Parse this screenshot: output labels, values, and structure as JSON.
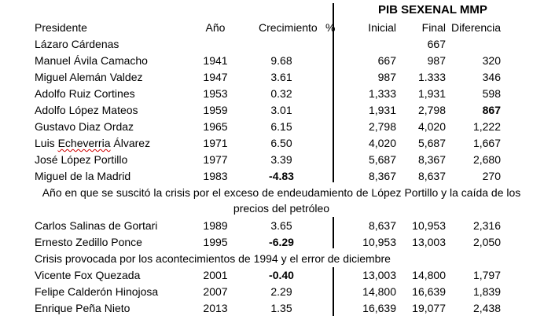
{
  "title": "PIB SEXENAL MMP",
  "headers": {
    "president": "Presidente",
    "year": "Año",
    "growth": "Crecimiento",
    "percent": "%",
    "initial": "Inicial",
    "final": "Final",
    "difference": "Diferencia"
  },
  "rows_a": [
    {
      "president": "Lázaro Cárdenas",
      "year": "",
      "growth": "",
      "initial": "",
      "final": "667",
      "difference": ""
    },
    {
      "president": "Manuel Ávila Camacho",
      "year": "1941",
      "growth": "9.68",
      "initial": "667",
      "final": "987",
      "difference": "320"
    },
    {
      "president": "Miguel Alemán Valdez",
      "year": "1947",
      "growth": "3.61",
      "initial": "987",
      "final": "1.333",
      "difference": "346"
    },
    {
      "president": "Adolfo Ruiz Cortines",
      "year": "1953",
      "growth": "0.32",
      "initial": "1,333",
      "final": "1,931",
      "difference": "598"
    },
    {
      "president": "Adolfo López Mateos",
      "year": "1959",
      "growth": "3.01",
      "initial": "1,931",
      "final": "2,798",
      "difference": "867"
    },
    {
      "president": "Gustavo Diaz Ordaz",
      "year": "1965",
      "growth": "6.15",
      "initial": "2,798",
      "final": "4,020",
      "difference": "1,222"
    },
    {
      "president_pre": "Luis ",
      "president_word": "Echeverria",
      "president_post": " Álvarez",
      "year": "1971",
      "growth": "6.50",
      "initial": "4,020",
      "final": "5,687",
      "difference": "1,667"
    },
    {
      "president": "José López Portillo",
      "year": "1977",
      "growth": "3.39",
      "initial": "5,687",
      "final": "8,367",
      "difference": "2,680"
    },
    {
      "president": "Miguel de la Madrid",
      "year": "1983",
      "growth": "-4.83",
      "initial": "8,367",
      "final": "8,637",
      "difference": "270"
    }
  ],
  "note_1": "Año en que se suscitó la crisis por el exceso de endeudamiento de López Portillo y la caída de los precios del petróleo",
  "rows_b": [
    {
      "president": "Carlos Salinas de Gortari",
      "year": "1989",
      "growth": "3.65",
      "initial": "8,637",
      "final": "10,953",
      "difference": "2,316"
    },
    {
      "president": "Ernesto Zedillo Ponce",
      "year": "1995",
      "growth": "-6.29",
      "initial": "10,953",
      "final": "13,003",
      "difference": "2,050"
    }
  ],
  "note_2": "Crisis provocada por los acontecimientos de 1994 y el error de diciembre",
  "rows_c": [
    {
      "president": "Vicente Fox Quezada",
      "year": "2001",
      "growth": "-0.40",
      "initial": "13,003",
      "final": "14,800",
      "difference": "1,797"
    },
    {
      "president": "Felipe Calderón Hinojosa",
      "year": "2007",
      "growth": "2.29",
      "initial": "14,800",
      "final": "16,639",
      "difference": "1,839"
    },
    {
      "president": "Enrique Peña Nieto",
      "year": "2013",
      "growth": "1.35",
      "initial": "16,639",
      "final": "19,077",
      "difference": "2,438"
    }
  ]
}
